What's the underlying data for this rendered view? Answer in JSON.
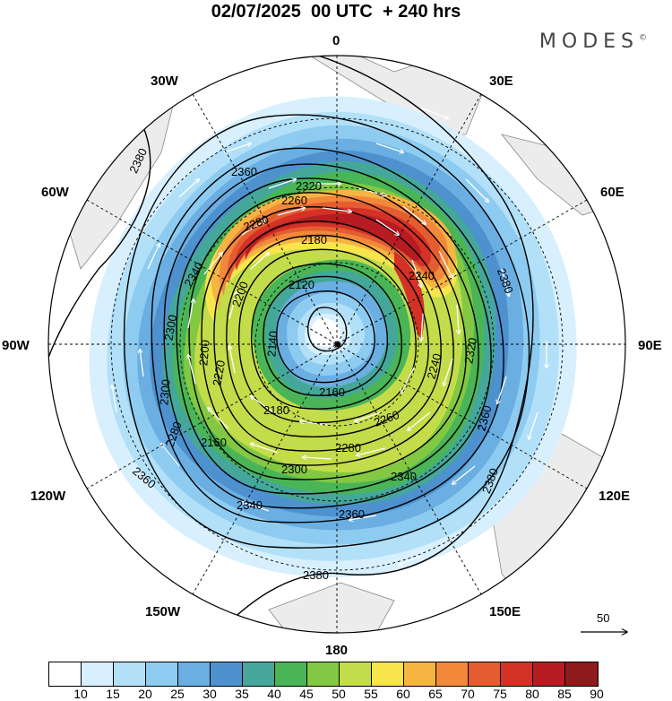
{
  "title": "02/07/2025  00 UTC  + 240 hrs",
  "logo": "MODES",
  "logo_mark": "©",
  "longitude_labels": [
    "0",
    "30E",
    "60E",
    "90E",
    "120E",
    "150E",
    "180",
    "150W",
    "120W",
    "90W",
    "60W",
    "30W"
  ],
  "contour_labels": [
    "2380",
    "2360",
    "2340",
    "2320",
    "2300",
    "2280",
    "2260",
    "2240",
    "2220",
    "2200",
    "2180",
    "2160",
    "2140",
    "2120",
    "2380",
    "2360",
    "2340",
    "2320",
    "2300",
    "2280",
    "2260",
    "2240",
    "2200",
    "2180",
    "2160",
    "2360",
    "2380",
    "2340",
    "2300",
    "2280",
    "2360",
    "2380"
  ],
  "colorbar": {
    "colors": [
      "#ffffff",
      "#d8f0fd",
      "#b2e0f8",
      "#8ecbf0",
      "#6aaee2",
      "#4d91cf",
      "#45a79a",
      "#4ab557",
      "#82c842",
      "#c3dc4a",
      "#f8e44b",
      "#f6b443",
      "#f1883a",
      "#e45d30",
      "#d43127",
      "#b71c22",
      "#8f1a1c"
    ],
    "ticks": [
      "10",
      "15",
      "20",
      "25",
      "30",
      "35",
      "40",
      "45",
      "50",
      "55",
      "60",
      "65",
      "70",
      "75",
      "80",
      "85",
      "90"
    ]
  },
  "vector_reference": "50"
}
